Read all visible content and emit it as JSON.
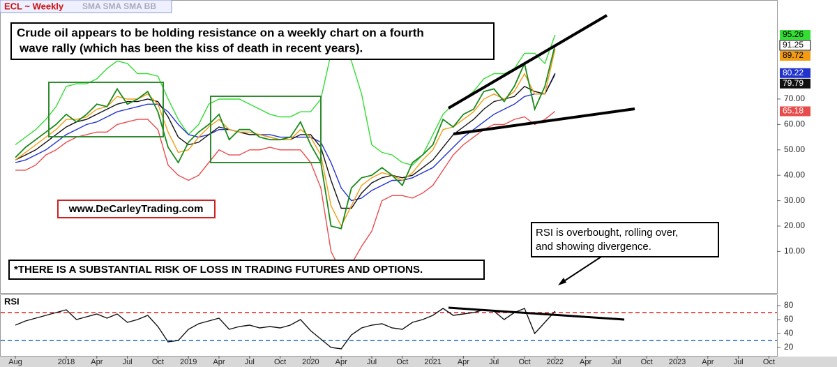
{
  "header": {
    "symbol": "ECL ~ Weekly",
    "studies": "SMA SMA SMA BB"
  },
  "annotations": {
    "headline": [
      "Crude oil appears to be holding resistance on a weekly chart on a fourth",
      "wave rally (which has been the kiss of death in recent years)."
    ],
    "website": "www.DeCarleyTrading.com",
    "disclaimer": "*THERE IS A SUBSTANTIAL RISK OF LOSS IN TRADING FUTURES AND OPTIONS.",
    "rsi_note": [
      "RSI is overbought, rolling over,",
      "and showing divergence."
    ]
  },
  "chart_data": [
    {
      "type": "line",
      "ylim": [
        -5,
        109
      ],
      "yticks": [
        {
          "value": 10,
          "label": "10.00"
        },
        {
          "value": 20,
          "label": "20.00"
        },
        {
          "value": 30,
          "label": "30.00"
        },
        {
          "value": 40,
          "label": "40.00"
        },
        {
          "value": 50,
          "label": "50.00"
        },
        {
          "value": 60,
          "label": "60.00"
        },
        {
          "value": 70,
          "label": "70.00"
        }
      ],
      "grid": false,
      "series": [
        {
          "color": "#33dd33",
          "values": [
            52,
            55,
            58,
            62,
            67,
            75,
            76,
            76,
            78,
            82,
            85,
            84,
            80,
            80,
            79,
            70,
            62,
            56,
            60,
            68,
            70,
            70,
            70,
            68,
            66,
            64,
            63,
            63,
            65,
            65,
            70,
            88,
            92,
            85,
            72,
            52,
            49,
            48,
            45,
            44,
            48,
            56,
            64,
            68,
            70,
            73,
            78,
            80,
            80,
            82,
            88,
            88,
            84,
            95.26,
            null,
            null,
            null,
            null,
            null,
            null,
            null,
            null,
            null,
            null,
            null,
            null,
            null,
            null,
            null,
            null,
            null,
            null,
            null,
            null,
            null
          ]
        },
        {
          "color": "#e84c4c",
          "values": [
            42,
            42,
            44,
            48,
            50,
            53,
            55,
            56,
            57,
            57,
            60,
            61,
            62,
            62,
            58,
            44,
            40,
            38,
            40,
            45,
            50,
            48,
            48,
            50,
            50,
            51,
            50,
            50,
            50,
            45,
            35,
            10,
            2,
            5,
            12,
            18,
            30,
            32,
            32,
            31,
            33,
            36,
            42,
            48,
            52,
            55,
            58,
            60,
            60,
            62,
            63,
            60,
            62,
            65.18,
            null,
            null,
            null,
            null,
            null,
            null,
            null,
            null,
            null,
            null,
            null,
            null,
            null,
            null,
            null,
            null,
            null,
            null,
            null,
            null,
            null
          ]
        },
        {
          "color": "#2233cc",
          "values": [
            45,
            46,
            48,
            50,
            53,
            56,
            58,
            60,
            61,
            63,
            65,
            66,
            67,
            68,
            68,
            65,
            60,
            56,
            55,
            56,
            58,
            58,
            57,
            56,
            56,
            56,
            55,
            55,
            55,
            55,
            53,
            45,
            35,
            30,
            31,
            34,
            36,
            38,
            38,
            39,
            41,
            43,
            47,
            51,
            55,
            58,
            61,
            64,
            66,
            68,
            71,
            72,
            72,
            80.22,
            null,
            null,
            null,
            null,
            null,
            null,
            null,
            null,
            null,
            null,
            null,
            null,
            null,
            null,
            null,
            null,
            null,
            null,
            null,
            null,
            null
          ]
        },
        {
          "color": "#111111",
          "values": [
            46,
            48,
            50,
            53,
            56,
            59,
            61,
            62,
            64,
            66,
            68,
            69,
            69,
            70,
            69,
            63,
            55,
            52,
            53,
            56,
            59,
            58,
            57,
            56,
            56,
            55,
            54,
            54,
            56,
            56,
            51,
            38,
            27,
            27,
            33,
            37,
            39,
            40,
            39,
            40,
            43,
            46,
            51,
            56,
            59,
            62,
            66,
            69,
            70,
            71,
            75,
            73,
            72,
            79.79,
            null,
            null,
            null,
            null,
            null,
            null,
            null,
            null,
            null,
            null,
            null,
            null,
            null,
            null,
            null,
            null,
            null,
            null,
            null,
            null,
            null
          ]
        },
        {
          "color": "#f39c12",
          "values": [
            46,
            49,
            52,
            55,
            58,
            62,
            62,
            63,
            66,
            67,
            71,
            70,
            70,
            72,
            68,
            57,
            49,
            50,
            55,
            59,
            62,
            58,
            57,
            57,
            56,
            55,
            54,
            54,
            58,
            55,
            48,
            28,
            20,
            28,
            36,
            39,
            41,
            40,
            38,
            41,
            46,
            50,
            58,
            59,
            62,
            65,
            70,
            72,
            70,
            73,
            80,
            72,
            72,
            89.72,
            null,
            null,
            null,
            null,
            null,
            null,
            null,
            null,
            null,
            null,
            null,
            null,
            null,
            null,
            null,
            null,
            null,
            null,
            null,
            null,
            null
          ]
        },
        {
          "color": "#1a8a1a",
          "values": [
            47,
            51,
            54,
            57,
            60,
            64,
            61,
            64,
            68,
            67,
            74,
            68,
            70,
            73,
            65,
            51,
            45,
            53,
            57,
            60,
            64,
            54,
            58,
            58,
            55,
            54,
            54,
            55,
            61,
            52,
            45,
            20,
            19,
            35,
            39,
            40,
            43,
            40,
            36,
            45,
            48,
            52,
            62,
            59,
            64,
            66,
            73,
            74,
            69,
            75,
            84,
            66,
            75,
            91.25,
            null,
            null,
            null,
            null,
            null,
            null,
            null,
            null,
            null,
            null,
            null,
            null,
            null,
            null,
            null,
            null,
            null,
            null,
            null,
            null,
            null
          ]
        }
      ]
    },
    {
      "type": "line",
      "title": "RSI",
      "categories": [
        "Aug",
        null,
        null,
        null,
        null,
        "2018",
        null,
        null,
        "Apr",
        null,
        null,
        "Jul",
        null,
        null,
        "Oct",
        null,
        null,
        "2019",
        null,
        null,
        "Apr",
        null,
        null,
        "Jul",
        null,
        null,
        "Oct",
        null,
        null,
        "2020",
        null,
        null,
        "Apr",
        null,
        null,
        "Jul",
        null,
        null,
        "Oct",
        null,
        null,
        "2021",
        null,
        null,
        "Apr",
        null,
        null,
        "Jul",
        null,
        null,
        "Oct",
        null,
        null,
        "2022",
        null,
        null,
        "Apr",
        null,
        null,
        "Jul",
        null,
        null,
        "Oct",
        null,
        null,
        "2023",
        null,
        null,
        "Apr",
        null,
        null,
        "Jul",
        null,
        null,
        "Oct"
      ],
      "ylim": [
        8,
        93
      ],
      "yticks": [
        20,
        40,
        60,
        80
      ],
      "reference_lines": [
        {
          "value": 70,
          "color": "#e02020"
        },
        {
          "value": 30,
          "color": "#1a66cc"
        }
      ],
      "series": [
        {
          "color": "#111111",
          "values": [
            52,
            58,
            62,
            66,
            70,
            74,
            60,
            64,
            68,
            62,
            68,
            56,
            60,
            66,
            50,
            28,
            30,
            46,
            54,
            58,
            62,
            46,
            50,
            52,
            48,
            50,
            48,
            52,
            60,
            44,
            32,
            20,
            18,
            38,
            48,
            52,
            54,
            48,
            46,
            56,
            60,
            66,
            76,
            66,
            68,
            70,
            74,
            72,
            60,
            70,
            76,
            40,
            56,
            72,
            null,
            null,
            null,
            null,
            null,
            null,
            null,
            null,
            null,
            null,
            null,
            null,
            null,
            null,
            null,
            null,
            null,
            null,
            null,
            null,
            null
          ]
        }
      ]
    }
  ]
}
